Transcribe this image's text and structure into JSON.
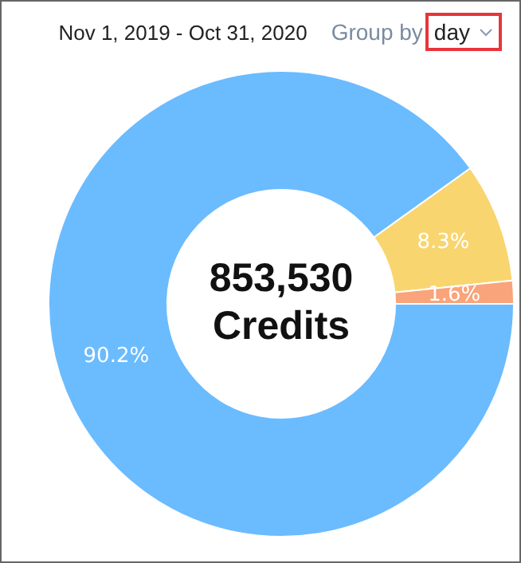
{
  "chart_data": {
    "type": "donut",
    "subtitle": "Nov 1, 2019 - Oct 31, 2020",
    "annotations": [
      "Group by",
      "day",
      "853,530",
      "Credits"
    ],
    "categories": [
      null,
      null,
      null
    ],
    "values": [
      90.2,
      8.3,
      1.6
    ],
    "colors": [
      "#6bbbff",
      "#f9d56f",
      "#f9a47a"
    ],
    "value_labels": [
      "90.2%",
      "8.3%",
      "1.6%"
    ],
    "legend": false
  }
}
